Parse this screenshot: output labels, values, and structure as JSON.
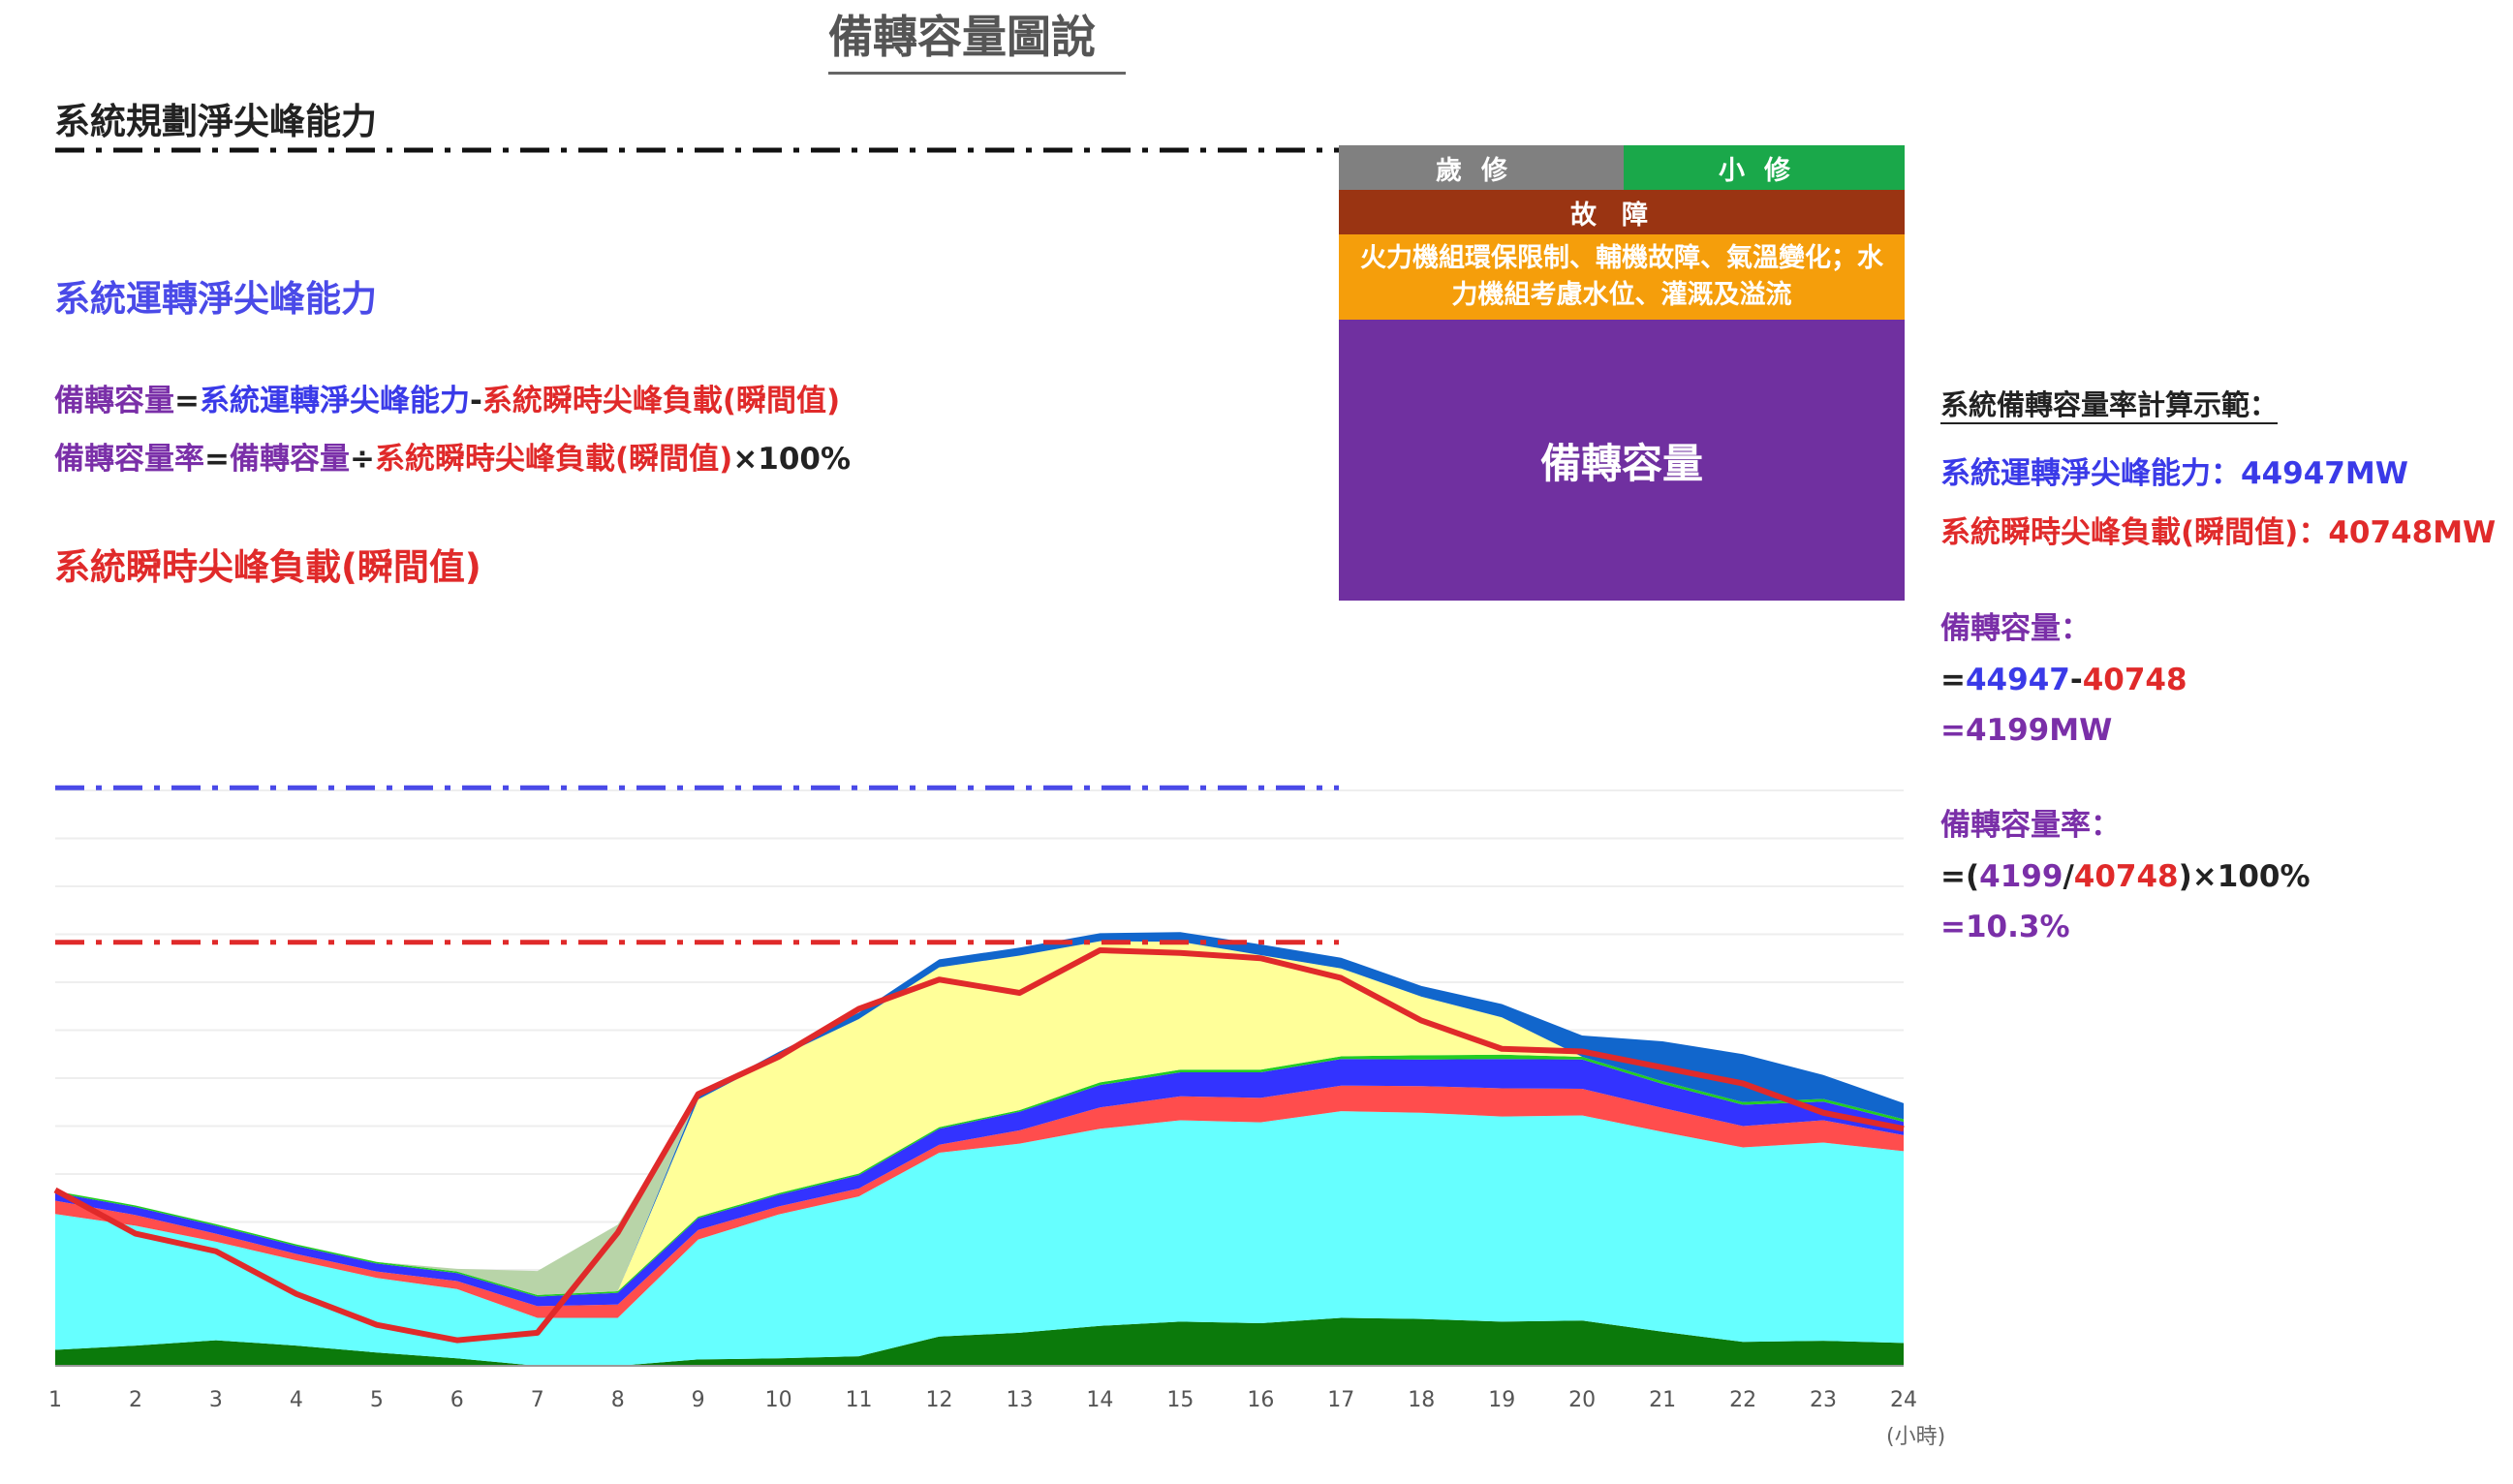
{
  "title": "備轉容量圖說",
  "lines": {
    "planned": "系統規劃淨尖峰能力",
    "operating": "系統運轉淨尖峰能力",
    "peak_load": "系統瞬時尖峰負載(瞬間值)"
  },
  "formulas": {
    "reserve_label": "備轉容量",
    "eq": "=",
    "operating": "系統運轉淨尖峰能力",
    "minus": "-",
    "peak_load": "系統瞬時尖峰負載(瞬間值)",
    "rate_label": "備轉容量率",
    "div": "÷",
    "reserve": "備轉容量",
    "times": "×100%"
  },
  "panel": {
    "overhaul": "歲修",
    "minor": "小修",
    "fault": "故障",
    "limits": "火力機組環保限制、輔機故障、氣溫變化；水力機組考慮水位、灌溉及溢流",
    "reserve": "備轉容量"
  },
  "calc": {
    "title": "系統備轉容量率計算示範：",
    "operating_label": "系統運轉淨尖峰能力：",
    "operating_value": "44947MW",
    "peak_label": "系統瞬時尖峰負載(瞬間值)：",
    "peak_value": "40748MW",
    "reserve_label": "備轉容量：",
    "eq1_prefix": "=",
    "eq1_a": "44947",
    "eq1_minus": "-",
    "eq1_b": "40748",
    "eq2": "=4199MW",
    "rate_label": "備轉容量率：",
    "eq3_prefix": "=(",
    "eq3_a": "4199",
    "eq3_slash": "/",
    "eq3_b": "40748",
    "eq3_suffix": ")×100%",
    "eq4": "=10.3%"
  },
  "colors": {
    "base_dark_green": "#0b7a0b",
    "cyan": "#66ffff",
    "red_band": "#ff4d4d",
    "blue_band": "#3333ff",
    "green_line": "#22cc22",
    "yellow": "#ffff99",
    "dark_blue": "#1166cc",
    "sage": "#b8d4a8",
    "load_line": "#e02a2a",
    "planned_line": "#111111",
    "operating_line": "#4a4ae8",
    "peak_line": "#e02a2a"
  },
  "chart_data": {
    "type": "area",
    "x": [
      1,
      2,
      3,
      4,
      5,
      6,
      7,
      8,
      9,
      10,
      11,
      12,
      13,
      14,
      15,
      16,
      17,
      18,
      19,
      20,
      21,
      22,
      23,
      24
    ],
    "xlabel": "(小時)",
    "series": [
      {
        "values": [
          30,
          38,
          48,
          38,
          25,
          14,
          0,
          0,
          12,
          14,
          18,
          55,
          62,
          75,
          83,
          80,
          90,
          88,
          83,
          85,
          64,
          45,
          47,
          43
        ]
      },
      {
        "values": [
          255,
          225,
          185,
          160,
          140,
          130,
          90,
          90,
          225,
          270,
          300,
          345,
          355,
          370,
          378,
          377,
          388,
          387,
          385,
          385,
          375,
          365,
          372,
          360
        ]
      },
      {
        "values": [
          25,
          20,
          15,
          12,
          12,
          15,
          22,
          25,
          18,
          15,
          15,
          15,
          25,
          40,
          45,
          46,
          48,
          50,
          53,
          50,
          45,
          40,
          42,
          30
        ]
      },
      {
        "values": [
          15,
          15,
          15,
          15,
          15,
          15,
          18,
          22,
          22,
          22,
          25,
          30,
          35,
          42,
          45,
          48,
          50,
          50,
          55,
          55,
          45,
          40,
          35,
          25
        ]
      },
      {
        "values": [
          3,
          3,
          3,
          3,
          3,
          3,
          3,
          3,
          3,
          3,
          3,
          3,
          3,
          5,
          5,
          5,
          5,
          8,
          8,
          5,
          5,
          5,
          5,
          5
        ]
      },
      {
        "values": [
          0,
          0,
          0,
          0,
          0,
          0,
          0,
          0,
          220,
          255,
          290,
          300,
          290,
          265,
          240,
          215,
          165,
          110,
          70,
          0,
          0,
          0,
          0,
          0
        ]
      },
      {
        "values": [
          0,
          0,
          0,
          0,
          0,
          0,
          0,
          0,
          8,
          10,
          12,
          15,
          15,
          15,
          18,
          20,
          20,
          20,
          25,
          40,
          75,
          90,
          45,
          30
        ]
      },
      {
        "values": [
          0,
          0,
          0,
          0,
          0,
          5,
          45,
          125,
          0,
          0,
          0,
          0,
          0,
          0,
          0,
          0,
          0,
          0,
          0,
          0,
          0,
          0,
          0,
          0
        ]
      }
    ],
    "load_line": [
      330,
      248,
      215,
      135,
      77,
      48,
      62,
      250,
      510,
      580,
      670,
      725,
      700,
      780,
      775,
      765,
      728,
      648,
      595,
      590,
      560,
      530,
      475,
      445
    ],
    "reference_lines": {
      "operating": 1085,
      "peak_load": 795
    },
    "ylim": [
      0,
      1300
    ]
  }
}
